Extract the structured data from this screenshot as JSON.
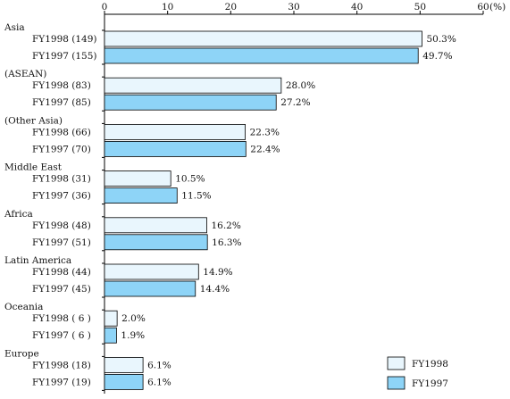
{
  "chart_data": {
    "type": "bar",
    "orientation": "horizontal",
    "axis": {
      "min": 0,
      "max": 60,
      "ticks": [
        0,
        10,
        20,
        30,
        40,
        50,
        60
      ],
      "tick_labels": [
        "0",
        "10",
        "20",
        "30",
        "40",
        "50",
        "60"
      ],
      "unit_label": "(%)",
      "position": "top",
      "grid": false
    },
    "series": [
      {
        "name": "FY1998",
        "color": "#e9f6fd"
      },
      {
        "name": "FY1997",
        "color": "#8ed4f7"
      }
    ],
    "groups": [
      {
        "name": "Asia",
        "bars": [
          {
            "label": "FY1998 (149)",
            "value": 50.3,
            "value_label": "50.3%"
          },
          {
            "label": "FY1997 (155)",
            "value": 49.7,
            "value_label": "49.7%"
          }
        ]
      },
      {
        "name": "(ASEAN)",
        "bars": [
          {
            "label": "FY1998 (83)",
            "value": 28.0,
            "value_label": "28.0%"
          },
          {
            "label": "FY1997 (85)",
            "value": 27.2,
            "value_label": "27.2%"
          }
        ]
      },
      {
        "name": "(Other Asia)",
        "bars": [
          {
            "label": "FY1998 (66)",
            "value": 22.3,
            "value_label": "22.3%"
          },
          {
            "label": "FY1997 (70)",
            "value": 22.4,
            "value_label": "22.4%"
          }
        ]
      },
      {
        "name": "Middle East",
        "bars": [
          {
            "label": "FY1998 (31)",
            "value": 10.5,
            "value_label": "10.5%"
          },
          {
            "label": "FY1997 (36)",
            "value": 11.5,
            "value_label": "11.5%"
          }
        ]
      },
      {
        "name": "Africa",
        "bars": [
          {
            "label": "FY1998 (48)",
            "value": 16.2,
            "value_label": "16.2%"
          },
          {
            "label": "FY1997 (51)",
            "value": 16.3,
            "value_label": "16.3%"
          }
        ]
      },
      {
        "name": "Latin America",
        "bars": [
          {
            "label": "FY1998 (44)",
            "value": 14.9,
            "value_label": "14.9%"
          },
          {
            "label": "FY1997 (45)",
            "value": 14.4,
            "value_label": "14.4%"
          }
        ]
      },
      {
        "name": "Oceania",
        "bars": [
          {
            "label": "FY1998 ( 6 )",
            "value": 2.0,
            "value_label": "2.0%"
          },
          {
            "label": "FY1997 ( 6 )",
            "value": 1.9,
            "value_label": "1.9%"
          }
        ]
      },
      {
        "name": "Europe",
        "bars": [
          {
            "label": "FY1998 (18)",
            "value": 6.1,
            "value_label": "6.1%"
          },
          {
            "label": "FY1997 (19)",
            "value": 6.1,
            "value_label": "6.1%"
          }
        ]
      }
    ],
    "legend": {
      "placement": "bottom-right",
      "items": [
        {
          "name": "FY1998",
          "color": "#e9f6fd"
        },
        {
          "name": "FY1997",
          "color": "#8ed4f7"
        }
      ]
    }
  }
}
